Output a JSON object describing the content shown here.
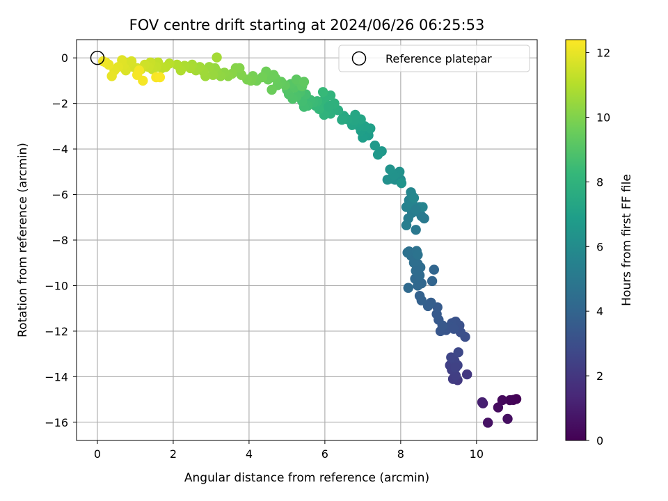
{
  "chart_data": {
    "type": "scatter",
    "title": "FOV centre drift starting at 2024/06/26 06:25:53",
    "xlabel": "Angular distance from reference (arcmin)",
    "ylabel": "Rotation from reference (arcmin)",
    "xlim": [
      -0.55,
      11.6
    ],
    "ylim": [
      -16.8,
      0.8
    ],
    "xticks": [
      0,
      2,
      4,
      6,
      8,
      10
    ],
    "yticks": [
      0,
      -2,
      -4,
      -6,
      -8,
      -10,
      -12,
      -14,
      -16
    ],
    "grid": true,
    "legend": {
      "position": "top-right",
      "entries": [
        "Reference platepar"
      ]
    },
    "reference_point": {
      "x": 0,
      "y": 0,
      "label": "Reference platepar"
    },
    "colorbar": {
      "label": "Hours from first FF file",
      "range": [
        0,
        12.4
      ],
      "ticks": [
        0,
        2,
        4,
        6,
        8,
        10,
        12
      ],
      "colormap": "viridis"
    },
    "series": [
      {
        "points": [
          [
            11.05,
            -14.98,
            0.05
          ],
          [
            10.97,
            -15.02,
            0.1
          ],
          [
            10.88,
            -15.03,
            0.15
          ],
          [
            10.68,
            -15.03,
            0.3
          ],
          [
            10.57,
            -15.35,
            0.4
          ],
          [
            10.82,
            -15.85,
            0.5
          ],
          [
            10.3,
            -16.02,
            0.6
          ],
          [
            10.17,
            -15.17,
            1.0
          ],
          [
            10.15,
            -15.12,
            1.1
          ],
          [
            9.75,
            -13.9,
            2.0
          ],
          [
            9.5,
            -14.15,
            2.1
          ],
          [
            9.38,
            -14.1,
            2.2
          ],
          [
            9.45,
            -13.95,
            2.3
          ],
          [
            9.35,
            -13.7,
            2.35
          ],
          [
            9.3,
            -13.5,
            2.4
          ],
          [
            9.5,
            -13.5,
            2.5
          ],
          [
            9.42,
            -13.3,
            2.55
          ],
          [
            9.33,
            -13.15,
            2.6
          ],
          [
            9.52,
            -12.93,
            2.7
          ],
          [
            9.45,
            -13.6,
            2.45
          ],
          [
            9.7,
            -12.25,
            3.0
          ],
          [
            9.58,
            -12.05,
            3.05
          ],
          [
            9.55,
            -11.75,
            3.1
          ],
          [
            9.45,
            -11.58,
            3.15
          ],
          [
            9.35,
            -11.65,
            3.2
          ],
          [
            9.3,
            -11.8,
            3.25
          ],
          [
            9.2,
            -11.95,
            3.3
          ],
          [
            9.05,
            -12.0,
            3.35
          ],
          [
            9.1,
            -11.75,
            3.4
          ],
          [
            9.0,
            -11.5,
            3.45
          ],
          [
            8.95,
            -11.25,
            3.5
          ],
          [
            8.97,
            -10.95,
            3.55
          ],
          [
            9.4,
            -11.9,
            3.2
          ],
          [
            8.8,
            -10.75,
            3.7
          ],
          [
            8.72,
            -10.9,
            3.75
          ],
          [
            8.55,
            -10.65,
            3.8
          ],
          [
            8.5,
            -10.45,
            3.85
          ],
          [
            8.83,
            -9.8,
            4.0
          ],
          [
            8.88,
            -9.3,
            4.05
          ],
          [
            8.55,
            -9.9,
            4.1
          ],
          [
            8.45,
            -10.0,
            4.15
          ],
          [
            8.38,
            -9.7,
            4.2
          ],
          [
            8.2,
            -10.1,
            4.25
          ],
          [
            8.5,
            -9.55,
            4.3
          ],
          [
            8.52,
            -9.2,
            4.35
          ],
          [
            8.45,
            -9.05,
            4.4
          ],
          [
            8.35,
            -9.0,
            4.45
          ],
          [
            8.28,
            -8.7,
            4.5
          ],
          [
            8.22,
            -8.5,
            4.55
          ],
          [
            8.18,
            -8.55,
            4.6
          ],
          [
            8.42,
            -8.48,
            4.65
          ],
          [
            8.45,
            -8.65,
            4.7
          ],
          [
            8.4,
            -9.35,
            4.35
          ],
          [
            8.4,
            -7.55,
            5.0
          ],
          [
            8.62,
            -7.05,
            5.05
          ],
          [
            8.55,
            -6.95,
            5.1
          ],
          [
            8.45,
            -6.75,
            5.15
          ],
          [
            8.3,
            -6.8,
            5.2
          ],
          [
            8.2,
            -7.05,
            5.25
          ],
          [
            8.15,
            -7.35,
            5.3
          ],
          [
            8.5,
            -6.55,
            5.35
          ],
          [
            8.35,
            -6.5,
            5.4
          ],
          [
            8.22,
            -6.25,
            5.45
          ],
          [
            8.15,
            -6.55,
            5.5
          ],
          [
            8.28,
            -6.4,
            5.55
          ],
          [
            8.58,
            -6.55,
            5.6
          ],
          [
            8.3,
            -6.05,
            5.65
          ],
          [
            8.27,
            -5.9,
            5.7
          ],
          [
            8.35,
            -6.15,
            5.75
          ],
          [
            8.4,
            -6.65,
            5.3
          ],
          [
            8.0,
            -5.35,
            6.0
          ],
          [
            7.95,
            -5.25,
            6.05
          ],
          [
            7.85,
            -5.35,
            6.1
          ],
          [
            7.75,
            -5.3,
            6.15
          ],
          [
            7.65,
            -5.35,
            6.2
          ],
          [
            7.97,
            -5.0,
            6.25
          ],
          [
            7.82,
            -5.15,
            6.3
          ],
          [
            7.72,
            -4.9,
            6.35
          ],
          [
            8.02,
            -5.5,
            6.4
          ],
          [
            7.5,
            -4.1,
            6.6
          ],
          [
            7.4,
            -4.25,
            6.65
          ],
          [
            7.32,
            -3.85,
            6.7
          ],
          [
            7.15,
            -3.4,
            6.8
          ],
          [
            7.1,
            -3.3,
            6.85
          ],
          [
            7.0,
            -3.5,
            6.9
          ],
          [
            6.95,
            -3.2,
            6.95
          ],
          [
            7.2,
            -3.1,
            7.0
          ],
          [
            7.05,
            -3.0,
            7.05
          ],
          [
            6.9,
            -3.0,
            7.1
          ],
          [
            6.85,
            -2.85,
            7.15
          ],
          [
            6.72,
            -2.95,
            7.2
          ],
          [
            6.95,
            -2.7,
            7.25
          ],
          [
            6.78,
            -2.75,
            7.3
          ],
          [
            6.8,
            -2.5,
            7.35
          ],
          [
            6.6,
            -2.7,
            7.4
          ],
          [
            6.5,
            -2.55,
            7.45
          ],
          [
            6.45,
            -2.72,
            7.5
          ],
          [
            6.35,
            -2.3,
            7.7
          ],
          [
            6.25,
            -2.25,
            7.75
          ],
          [
            6.15,
            -2.45,
            7.8
          ],
          [
            6.1,
            -2.1,
            7.85
          ],
          [
            6.25,
            -2.0,
            7.9
          ],
          [
            6.05,
            -2.3,
            7.95
          ],
          [
            5.98,
            -2.5,
            8.0
          ],
          [
            6.15,
            -1.65,
            8.05
          ],
          [
            6.0,
            -1.8,
            8.1
          ],
          [
            5.92,
            -2.05,
            8.15
          ],
          [
            5.85,
            -2.25,
            8.2
          ],
          [
            5.75,
            -2.1,
            8.25
          ],
          [
            5.95,
            -1.5,
            8.3
          ],
          [
            5.8,
            -1.9,
            8.35
          ],
          [
            5.7,
            -1.95,
            8.4
          ],
          [
            5.62,
            -1.85,
            8.45
          ],
          [
            5.55,
            -2.1,
            8.5
          ],
          [
            5.45,
            -2.15,
            8.55
          ],
          [
            5.4,
            -1.9,
            8.6
          ],
          [
            5.5,
            -1.6,
            8.65
          ],
          [
            6.1,
            -2.15,
            7.9
          ],
          [
            5.35,
            -1.5,
            8.8
          ],
          [
            5.25,
            -1.7,
            8.85
          ],
          [
            5.15,
            -1.8,
            8.9
          ],
          [
            5.05,
            -1.6,
            8.95
          ],
          [
            5.0,
            -1.4,
            9.0
          ],
          [
            5.2,
            -1.3,
            9.05
          ],
          [
            5.1,
            -1.15,
            9.1
          ],
          [
            5.3,
            -1.05,
            9.15
          ],
          [
            5.4,
            -1.25,
            9.2
          ],
          [
            5.25,
            -0.95,
            9.25
          ],
          [
            5.45,
            -1.05,
            9.3
          ],
          [
            4.95,
            -1.2,
            9.35
          ],
          [
            4.85,
            -1.05,
            9.4
          ],
          [
            4.75,
            -1.2,
            9.45
          ],
          [
            4.7,
            -0.9,
            9.5
          ],
          [
            4.6,
            -1.4,
            9.55
          ],
          [
            4.5,
            -0.95,
            9.6
          ],
          [
            4.45,
            -0.6,
            9.65
          ],
          [
            4.35,
            -0.85,
            9.7
          ],
          [
            4.2,
            -1.0,
            9.75
          ],
          [
            4.1,
            -0.8,
            9.8
          ],
          [
            4.05,
            -1.0,
            9.85
          ],
          [
            3.95,
            -0.95,
            9.9
          ],
          [
            4.65,
            -0.75,
            9.6
          ],
          [
            3.8,
            -0.75,
            10.0
          ],
          [
            3.75,
            -0.45,
            10.05
          ],
          [
            3.65,
            -0.45,
            10.1
          ],
          [
            3.55,
            -0.7,
            10.15
          ],
          [
            3.45,
            -0.8,
            10.2
          ],
          [
            3.35,
            -0.65,
            10.25
          ],
          [
            3.25,
            -0.8,
            10.3
          ],
          [
            3.15,
            -0.6,
            10.35
          ],
          [
            3.1,
            -0.45,
            10.4
          ],
          [
            3.05,
            -0.75,
            10.45
          ],
          [
            2.95,
            -0.4,
            10.5
          ],
          [
            2.85,
            -0.8,
            10.55
          ],
          [
            2.8,
            -0.6,
            10.6
          ],
          [
            2.7,
            -0.4,
            10.65
          ],
          [
            3.15,
            0.02,
            10.7
          ],
          [
            2.6,
            -0.55,
            10.7
          ],
          [
            2.5,
            -0.3,
            10.75
          ],
          [
            2.45,
            -0.45,
            10.8
          ],
          [
            2.3,
            -0.35,
            10.85
          ],
          [
            2.2,
            -0.55,
            10.9
          ],
          [
            2.1,
            -0.3,
            10.95
          ],
          [
            1.9,
            -0.25,
            11.1
          ],
          [
            1.8,
            -0.4,
            11.15
          ],
          [
            1.7,
            -0.45,
            11.2
          ],
          [
            1.6,
            -0.2,
            11.25
          ],
          [
            1.55,
            -0.4,
            11.3
          ],
          [
            1.45,
            -0.5,
            11.35
          ],
          [
            1.4,
            -0.2,
            11.4
          ],
          [
            1.35,
            -0.4,
            11.45
          ],
          [
            1.25,
            -0.3,
            11.5
          ],
          [
            1.15,
            -0.5,
            11.55
          ],
          [
            1.05,
            -0.45,
            11.6
          ],
          [
            0.95,
            -0.4,
            11.65
          ],
          [
            0.85,
            -0.2,
            11.7
          ],
          [
            0.75,
            -0.55,
            11.75
          ],
          [
            0.7,
            -0.3,
            11.8
          ],
          [
            0.65,
            -0.1,
            11.85
          ],
          [
            0.55,
            -0.4,
            11.9
          ],
          [
            0.45,
            -0.55,
            11.95
          ],
          [
            0.38,
            -0.8,
            12.0
          ],
          [
            0.3,
            -0.3,
            12.05
          ],
          [
            0.22,
            -0.2,
            12.1
          ],
          [
            0.15,
            -0.15,
            12.15
          ],
          [
            0.9,
            -0.15,
            11.7
          ],
          [
            1.1,
            -0.55,
            12.2
          ],
          [
            1.2,
            -1.0,
            12.25
          ],
          [
            1.55,
            -0.85,
            12.3
          ],
          [
            1.65,
            -0.85,
            12.35
          ],
          [
            1.05,
            -0.75,
            12.25
          ]
        ]
      }
    ]
  }
}
